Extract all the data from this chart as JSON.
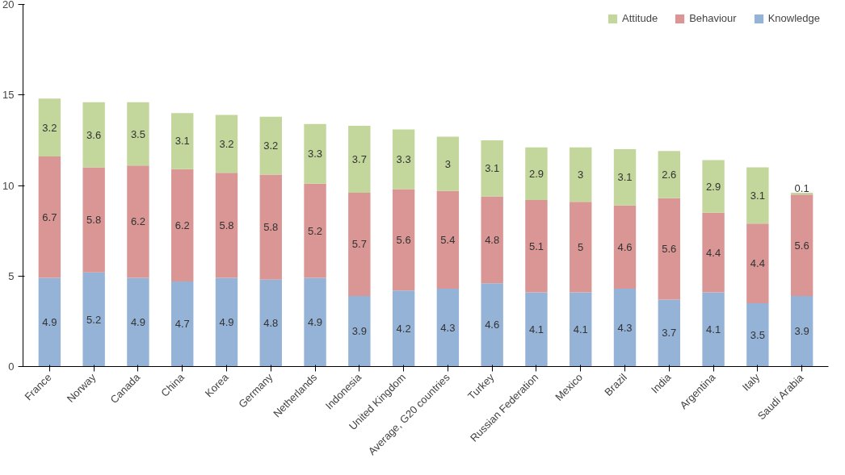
{
  "chart_data": {
    "type": "bar",
    "stacked": true,
    "data_labels": true,
    "grid": false,
    "legend": "top right",
    "categories": [
      "France",
      "Norway",
      "Canada",
      "China",
      "Korea",
      "Germany",
      "Netherlands",
      "Indonesia",
      "United Kingdom",
      "Average, G20 countries",
      "Turkey",
      "Russian Federation",
      "Mexico",
      "Brazil",
      "India",
      "Argentina",
      "Italy",
      "Saudi Arabia"
    ],
    "ylim": [
      0,
      20
    ],
    "yticks": [
      0,
      5,
      10,
      15,
      20
    ],
    "series": [
      {
        "name": "Knowledge",
        "color": "#95b3d7",
        "values": [
          4.9,
          5.2,
          4.9,
          4.7,
          4.9,
          4.8,
          4.9,
          3.9,
          4.2,
          4.3,
          4.6,
          4.1,
          4.1,
          4.3,
          3.7,
          4.1,
          3.5,
          3.9
        ]
      },
      {
        "name": "Behaviour",
        "color": "#d99694",
        "values": [
          6.7,
          5.8,
          6.2,
          6.2,
          5.8,
          5.8,
          5.2,
          5.7,
          5.6,
          5.4,
          4.8,
          5.1,
          5,
          4.6,
          5.6,
          4.4,
          4.4,
          5.6
        ]
      },
      {
        "name": "Attitude",
        "color": "#c3d69b",
        "values": [
          3.2,
          3.6,
          3.5,
          3.1,
          3.2,
          3.2,
          3.3,
          3.7,
          3.3,
          3,
          3.1,
          2.9,
          3,
          3.1,
          2.6,
          2.9,
          3.1,
          0.1
        ]
      }
    ]
  }
}
